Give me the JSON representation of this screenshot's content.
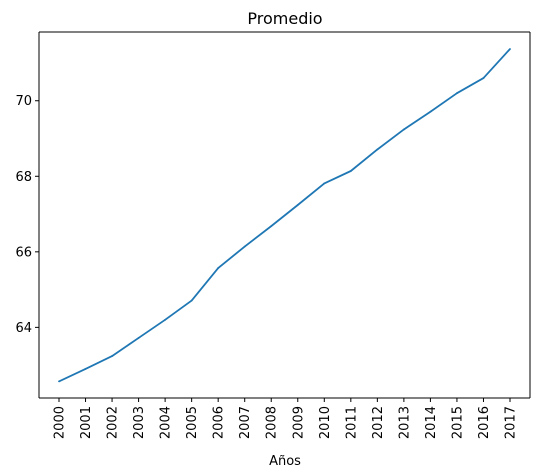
{
  "chart_data": {
    "type": "line",
    "title": "Promedio",
    "xlabel": "Años",
    "ylabel": "",
    "x": [
      "2000",
      "2001",
      "2002",
      "2003",
      "2004",
      "2005",
      "2006",
      "2007",
      "2008",
      "2009",
      "2010",
      "2011",
      "2012",
      "2013",
      "2014",
      "2015",
      "2016",
      "2017"
    ],
    "series": [
      {
        "values": [
          62.57,
          62.9,
          63.24,
          63.72,
          64.2,
          64.71,
          65.57,
          66.14,
          66.68,
          67.24,
          67.81,
          68.14,
          68.71,
          69.24,
          69.71,
          70.2,
          70.6,
          71.37
        ],
        "color": "#1f77b4"
      }
    ],
    "ylim": [
      62.13,
      71.82
    ],
    "yticks": [
      64,
      66,
      68,
      70
    ],
    "grid": false,
    "legend": "none"
  }
}
